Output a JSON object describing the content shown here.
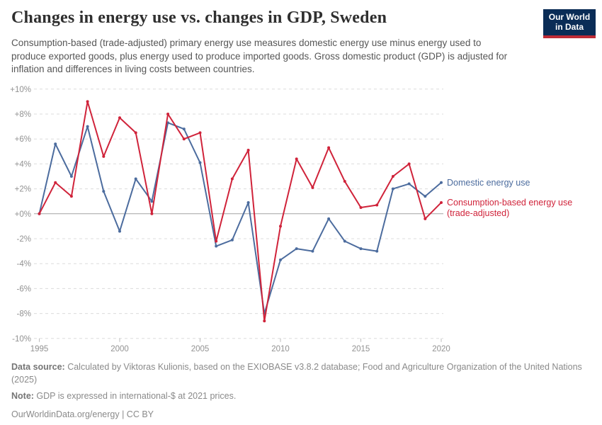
{
  "header": {
    "title": "Changes in energy use vs. changes in GDP, Sweden",
    "subtitle": "Consumption-based (trade-adjusted) primary energy use measures domestic energy use minus energy used to produce exported goods, plus energy used to produce imported goods. Gross domestic product (GDP) is adjusted for inflation and differences in living costs between countries.",
    "logo": {
      "line1": "Our World",
      "line2": "in Data"
    }
  },
  "colors": {
    "blue": "#4c6c9e",
    "red": "#d0233a",
    "grid": "#dcdcdc",
    "zero_line": "#a2a2a2",
    "tick_label": "#929292",
    "logo_bg": "#0a2c56",
    "logo_stripe": "#be2b36"
  },
  "legend": {
    "domestic": "Domestic energy use",
    "consumption_line1": "Consumption-based energy use",
    "consumption_line2": "(trade-adjusted)"
  },
  "chart_data": {
    "type": "line",
    "x": [
      1995,
      1996,
      1997,
      1998,
      1999,
      2000,
      2001,
      2002,
      2003,
      2004,
      2005,
      2006,
      2007,
      2008,
      2009,
      2010,
      2011,
      2012,
      2013,
      2014,
      2015,
      2016,
      2017,
      2018,
      2019,
      2020
    ],
    "series": [
      {
        "name": "Domestic energy use",
        "color": "#4c6c9e",
        "values": [
          0.0,
          5.6,
          3.0,
          7.0,
          1.8,
          -1.4,
          2.8,
          1.0,
          7.3,
          6.8,
          4.1,
          -2.6,
          -2.1,
          0.9,
          -8.0,
          -3.7,
          -2.8,
          -3.0,
          -0.4,
          -2.2,
          -2.8,
          -3.0,
          2.0,
          2.4,
          1.4,
          2.5
        ]
      },
      {
        "name": "Consumption-based energy use (trade-adjusted)",
        "color": "#d0233a",
        "values": [
          0.0,
          2.5,
          1.4,
          9.0,
          4.6,
          7.7,
          6.5,
          0.0,
          8.0,
          6.0,
          6.5,
          -2.2,
          2.8,
          5.1,
          -8.6,
          -1.0,
          4.4,
          2.1,
          5.3,
          2.6,
          0.5,
          0.7,
          3.0,
          4.0,
          -0.4,
          0.9
        ]
      }
    ],
    "ylim": [
      -10,
      10
    ],
    "ytick_step": 2,
    "ytick_format": "signed_percent",
    "xticks": [
      1995,
      2000,
      2005,
      2010,
      2015,
      2020
    ],
    "grid": "dashed horizontal, solid zero line",
    "legend_position": "right of line ends"
  },
  "footer": {
    "datasource_label": "Data source:",
    "datasource_text": " Calculated by Viktoras Kulionis, based on the EXIOBASE v3.8.2 database; Food and Agriculture Organization of the United Nations (2025)",
    "note_label": "Note:",
    "note_text": " GDP is expressed in international-$ at 2021 prices.",
    "license": "OurWorldinData.org/energy | CC BY"
  }
}
